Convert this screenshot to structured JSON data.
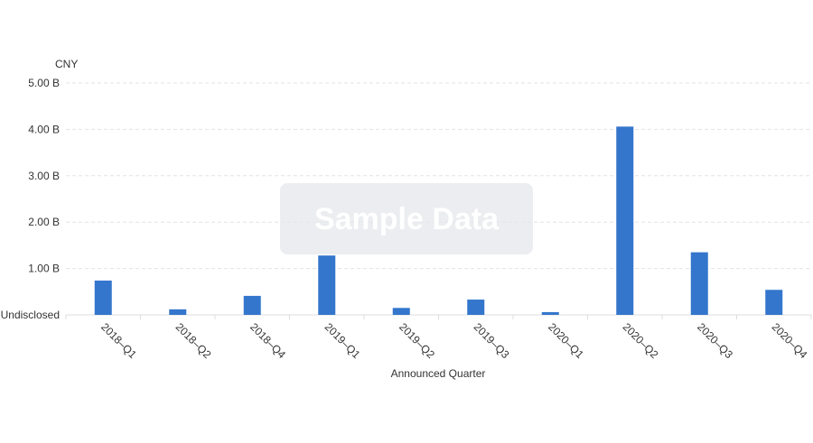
{
  "watermark": "Sample Data",
  "chart_data": {
    "type": "bar",
    "title": "",
    "ylabel": "CNY",
    "xlabel": "Announced Quarter",
    "categories": [
      "2018–Q1",
      "2018–Q2",
      "2018–Q4",
      "2019–Q1",
      "2019–Q2",
      "2019–Q3",
      "2020–Q1",
      "2020–Q2",
      "2020–Q3",
      "2020–Q4"
    ],
    "values": [
      0.74,
      0.12,
      0.41,
      1.28,
      0.15,
      0.33,
      0.06,
      4.06,
      1.35,
      0.54
    ],
    "value_unit": "B CNY",
    "ylim": [
      0,
      5
    ],
    "yticks": [
      0,
      1,
      2,
      3,
      4,
      5
    ],
    "ytick_labels": [
      "Undisclosed",
      "1.00 B",
      "2.00 B",
      "3.00 B",
      "4.00 B",
      "5.00 B"
    ],
    "grid": true,
    "bar_color": "#3476cc"
  }
}
